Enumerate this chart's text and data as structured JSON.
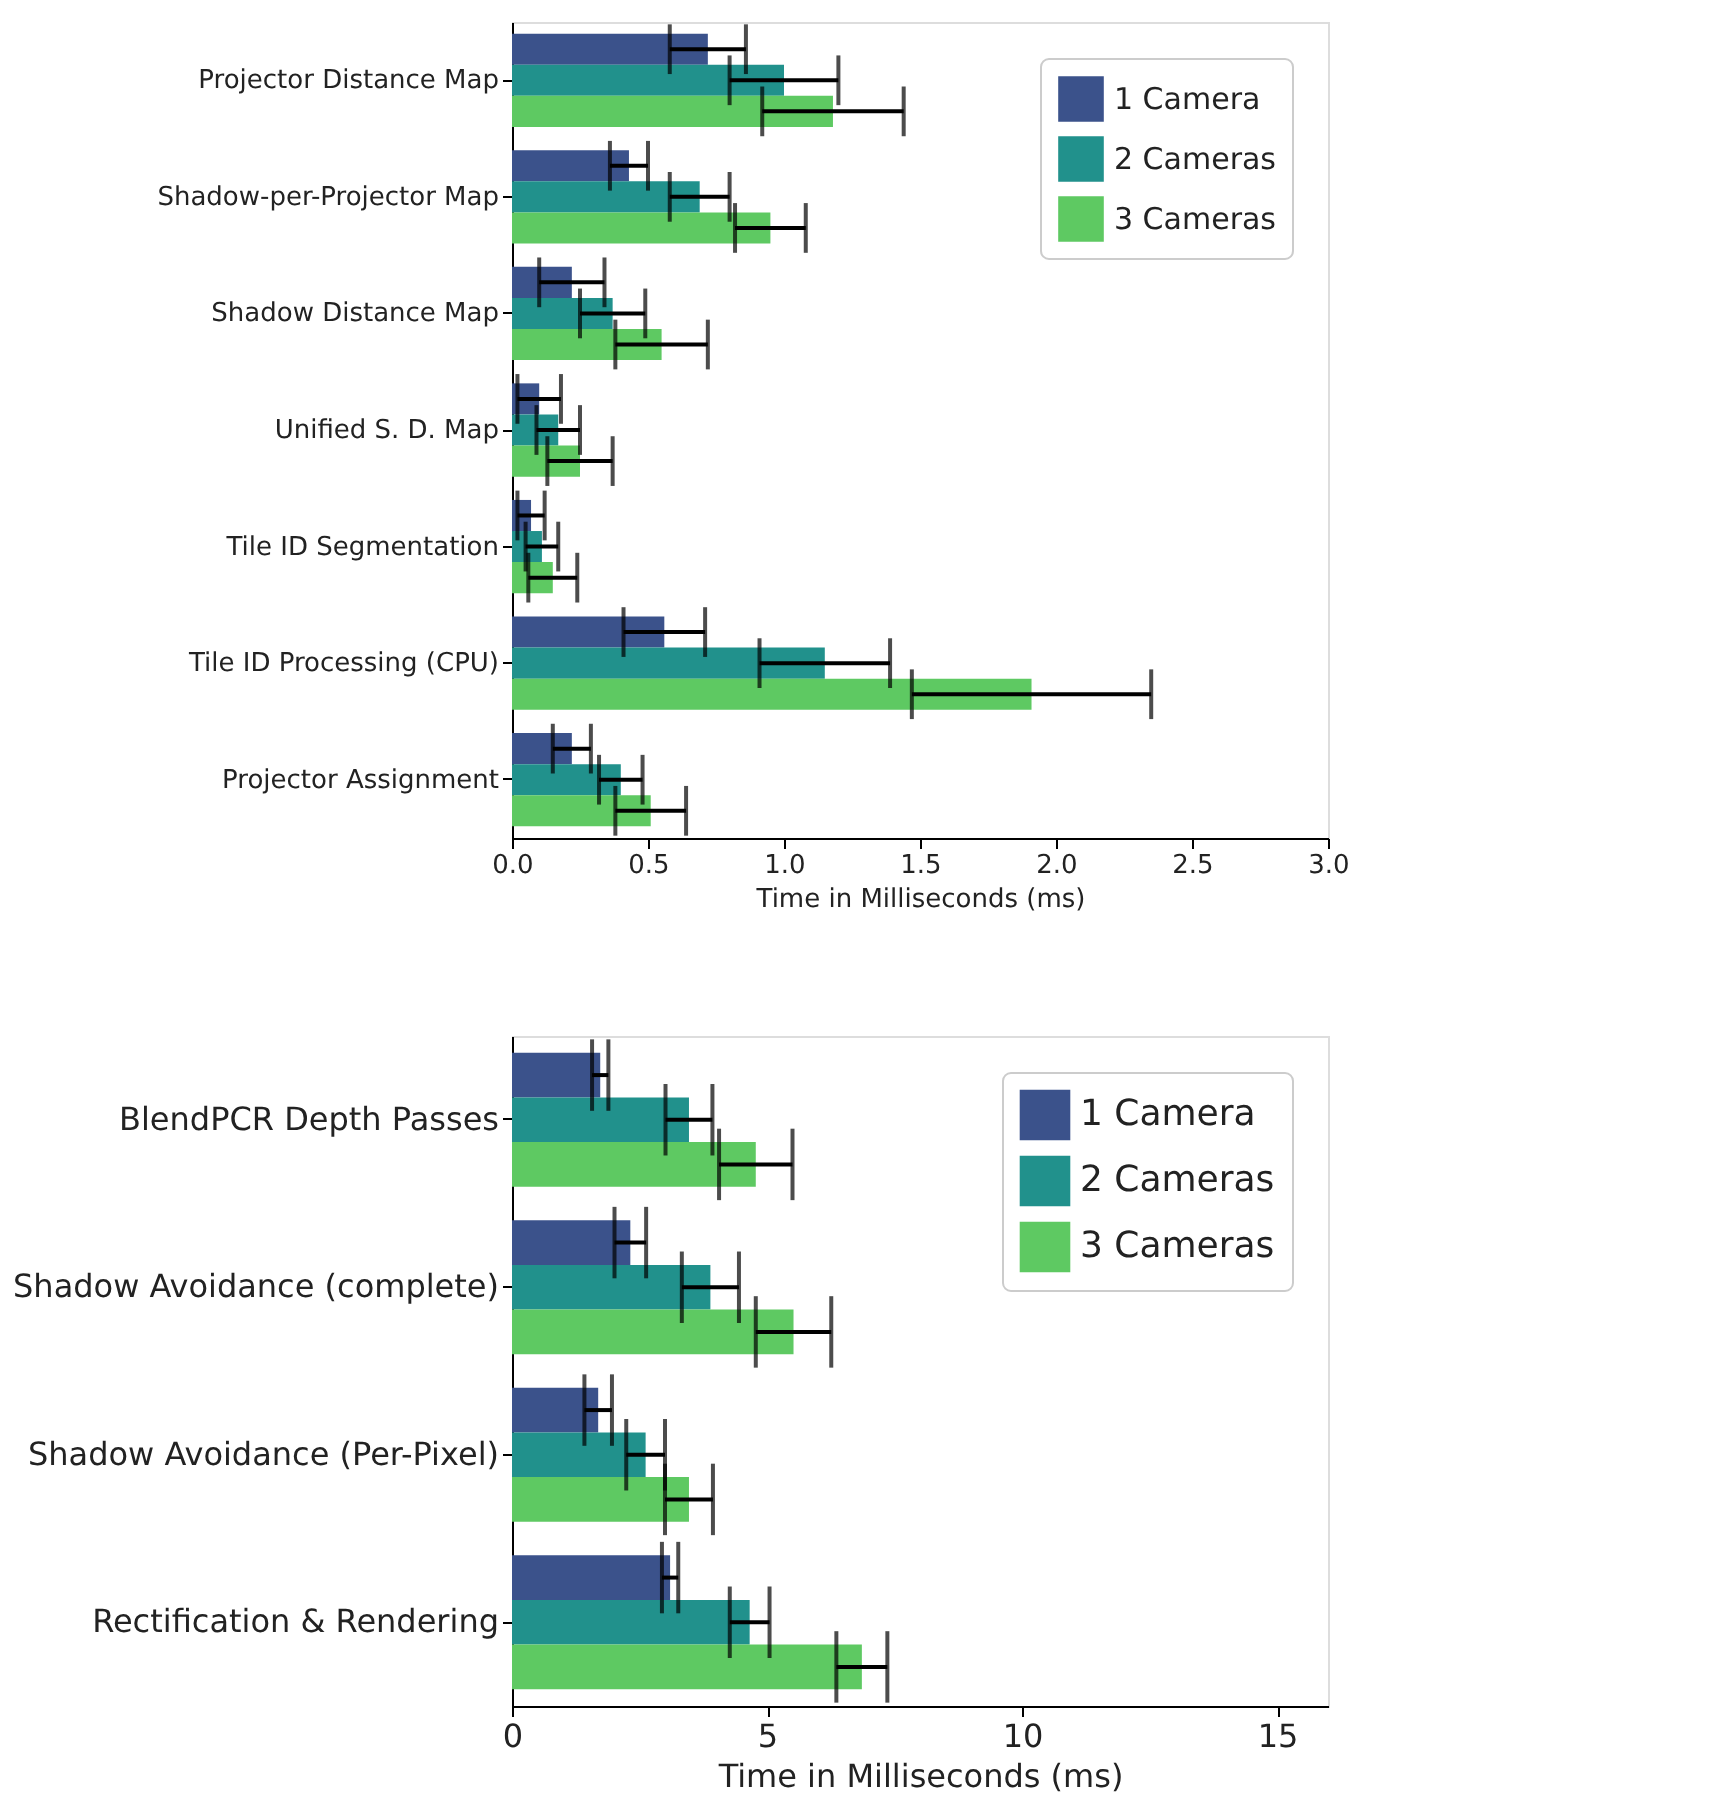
{
  "chart_data": [
    {
      "type": "bar",
      "orientation": "horizontal",
      "xlabel": "Time in Milliseconds (ms)",
      "categories": [
        "Projector Distance Map",
        "Shadow-per-Projector Map",
        "Shadow Distance Map",
        "Unified S. D. Map",
        "Tile ID Segmentation",
        "Tile ID Processing (CPU)",
        "Projector Assignment"
      ],
      "series": [
        {
          "name": "1 Camera",
          "color": "#3b528b",
          "values": [
            0.72,
            0.43,
            0.22,
            0.1,
            0.07,
            0.56,
            0.22
          ],
          "errors": [
            0.14,
            0.07,
            0.12,
            0.08,
            0.05,
            0.15,
            0.07
          ]
        },
        {
          "name": "2 Cameras",
          "color": "#21918c",
          "values": [
            1.0,
            0.69,
            0.37,
            0.17,
            0.11,
            1.15,
            0.4
          ],
          "errors": [
            0.2,
            0.11,
            0.12,
            0.08,
            0.06,
            0.24,
            0.08
          ]
        },
        {
          "name": "3 Cameras",
          "color": "#5ec962",
          "values": [
            1.18,
            0.95,
            0.55,
            0.25,
            0.15,
            1.91,
            0.51
          ],
          "errors": [
            0.26,
            0.13,
            0.17,
            0.12,
            0.09,
            0.44,
            0.13
          ]
        }
      ],
      "xlim": [
        0,
        3
      ],
      "xticks": [
        {
          "value": 0,
          "label": "0.0"
        },
        0.5,
        {
          "value": 1,
          "label": "1.0"
        },
        1.5,
        {
          "value": 2,
          "label": "2.0"
        },
        2.5,
        {
          "value": 3,
          "label": "3.0"
        }
      ],
      "legend": "top right",
      "grid": false
    },
    {
      "type": "bar",
      "orientation": "horizontal",
      "xlabel": "Time in Milliseconds (ms)",
      "categories": [
        "BlendPCR Depth Passes",
        "Shadow Avoidance (complete)",
        "Shadow Avoidance (Per-Pixel)",
        "Rectification & Rendering"
      ],
      "series": [
        {
          "name": "1 Camera",
          "color": "#3b528b",
          "values": [
            1.73,
            2.32,
            1.69,
            3.1
          ],
          "errors": [
            0.16,
            0.31,
            0.27,
            0.16
          ]
        },
        {
          "name": "2 Cameras",
          "color": "#21918c",
          "values": [
            3.47,
            3.89,
            2.62,
            4.66
          ],
          "errors": [
            0.46,
            0.56,
            0.38,
            0.39
          ]
        },
        {
          "name": "3 Cameras",
          "color": "#5ec962",
          "values": [
            4.78,
            5.52,
            3.47,
            6.86
          ],
          "errors": [
            0.72,
            0.74,
            0.47,
            0.5
          ]
        }
      ],
      "xlim": [
        0,
        16
      ],
      "xticks": [
        0,
        5,
        10,
        15
      ],
      "legend": "top right",
      "grid": false
    }
  ]
}
